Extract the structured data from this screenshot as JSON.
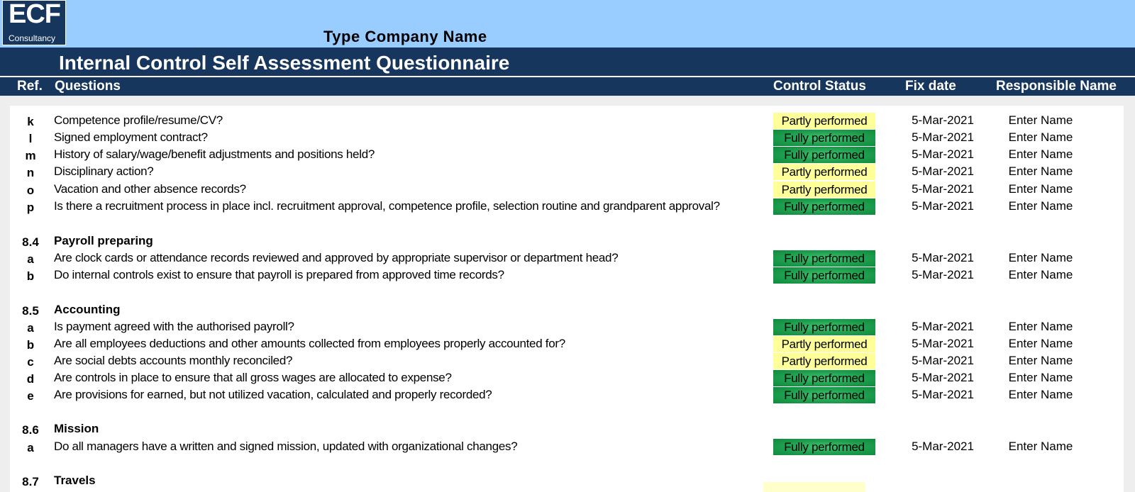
{
  "logo": {
    "main": "ECF",
    "sub": "Consultancy"
  },
  "company_name": "Type Company Name",
  "title": "Internal Control Self Assessment Questionnaire",
  "columns": {
    "ref": "Ref.",
    "questions": "Questions",
    "status": "Control Status",
    "fix_date": "Fix date",
    "responsible": "Responsible Name"
  },
  "colors": {
    "navy": "#17365d",
    "sky": "#99ccff",
    "partly": "#ffff99",
    "fully": "#1f9f4f"
  },
  "rows": [
    {
      "type": "item",
      "ref": "k",
      "question": "Competence profile/resume/CV?",
      "status": "Partly performed",
      "fix_date": "5-Mar-2021",
      "responsible": "Enter Name"
    },
    {
      "type": "item",
      "ref": "l",
      "question": "Signed employment contract?",
      "status": "Fully performed",
      "fix_date": "5-Mar-2021",
      "responsible": "Enter Name"
    },
    {
      "type": "item",
      "ref": "m",
      "question": "History of salary/wage/benefit adjustments and positions held?",
      "status": "Fully performed",
      "fix_date": "5-Mar-2021",
      "responsible": "Enter Name"
    },
    {
      "type": "item",
      "ref": "n",
      "question": "Disciplinary action?",
      "status": "Partly performed",
      "fix_date": "5-Mar-2021",
      "responsible": "Enter Name"
    },
    {
      "type": "item",
      "ref": "o",
      "question": "Vacation and other absence records?",
      "status": "Partly performed",
      "fix_date": "5-Mar-2021",
      "responsible": "Enter Name"
    },
    {
      "type": "item",
      "ref": "p",
      "question": "Is there a recruitment process in place incl. recruitment approval, competence profile, selection routine and grandparent approval?",
      "status": "Fully performed",
      "fix_date": "5-Mar-2021",
      "responsible": "Enter Name"
    },
    {
      "type": "section",
      "ref": "8.4",
      "title": "Payroll preparing"
    },
    {
      "type": "item",
      "ref": "a",
      "question": "Are clock cards or attendance records reviewed and approved by appropriate supervisor or department head?",
      "status": "Fully performed",
      "fix_date": "5-Mar-2021",
      "responsible": "Enter Name"
    },
    {
      "type": "item",
      "ref": "b",
      "question": "Do internal controls exist to ensure that payroll is prepared from approved time records?",
      "status": "Fully performed",
      "fix_date": "5-Mar-2021",
      "responsible": "Enter Name"
    },
    {
      "type": "section",
      "ref": "8.5",
      "title": "Accounting"
    },
    {
      "type": "item",
      "ref": "a",
      "question": "Is payment agreed with the authorised payroll?",
      "status": "Fully performed",
      "fix_date": "5-Mar-2021",
      "responsible": "Enter Name"
    },
    {
      "type": "item",
      "ref": "b",
      "question": "Are all employees deductions and other amounts collected from employees properly accounted for?",
      "status": "Partly performed",
      "fix_date": "5-Mar-2021",
      "responsible": "Enter Name"
    },
    {
      "type": "item",
      "ref": "c",
      "question": "Are social debts accounts monthly reconciled?",
      "status": "Partly performed",
      "fix_date": "5-Mar-2021",
      "responsible": "Enter Name"
    },
    {
      "type": "item",
      "ref": "d",
      "question": "Are controls in place to ensure that all gross wages are allocated to expense?",
      "status": "Fully performed",
      "fix_date": "5-Mar-2021",
      "responsible": "Enter Name"
    },
    {
      "type": "item",
      "ref": "e",
      "question": "Are provisions for earned, but not utilized vacation, calculated and properly recorded?",
      "status": "Fully performed",
      "fix_date": "5-Mar-2021",
      "responsible": "Enter Name"
    },
    {
      "type": "section",
      "ref": "8.6",
      "title": "Mission"
    },
    {
      "type": "item",
      "ref": "a",
      "question": "Do all managers have a written and signed mission, updated with organizational changes?",
      "status": "Fully performed",
      "fix_date": "5-Mar-2021",
      "responsible": "Enter Name"
    },
    {
      "type": "section",
      "ref": "8.7",
      "title": "Travels"
    }
  ]
}
